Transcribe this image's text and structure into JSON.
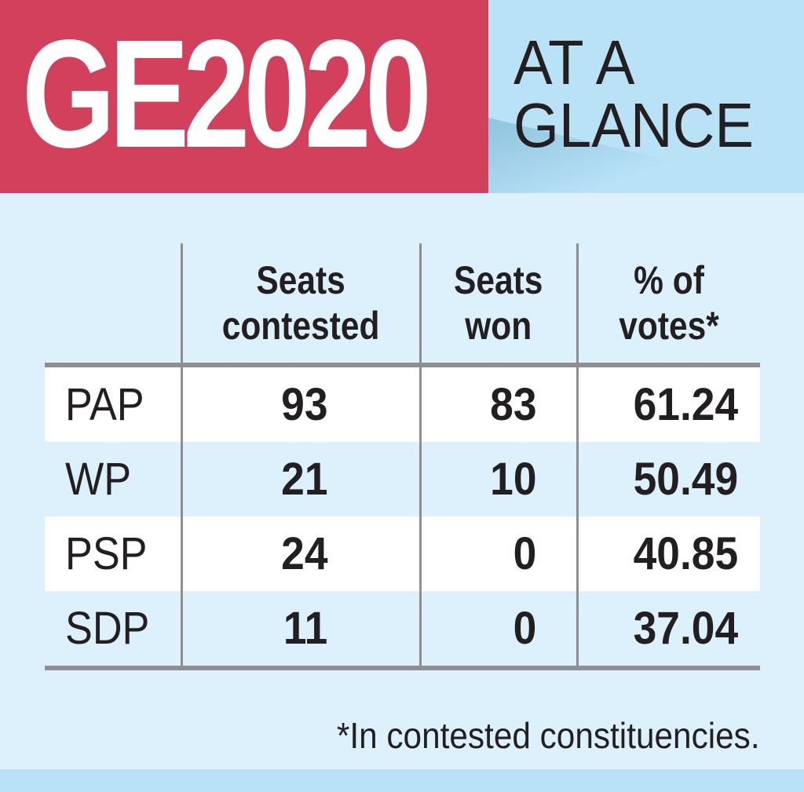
{
  "header": {
    "title": "GE2020",
    "subtitle_line1": "AT A",
    "subtitle_line2": "GLANCE"
  },
  "colors": {
    "header_red": "#d3405c",
    "header_blue": "#b9e2f7",
    "panel": "#ddf1fc",
    "row_stripe": "#ffffff",
    "rule": "#8e8f91"
  },
  "chart_data": {
    "type": "table",
    "columns": [
      "",
      "Seats contested",
      "Seats won",
      "% of votes*"
    ],
    "header_lines": [
      [
        "Seats",
        "contested"
      ],
      [
        "Seats",
        "won"
      ],
      [
        "% of",
        "votes*"
      ]
    ],
    "rows": [
      {
        "party": "PAP",
        "seats_contested": "93",
        "seats_won": "83",
        "pct_votes": "61.24"
      },
      {
        "party": "WP",
        "seats_contested": "21",
        "seats_won": "10",
        "pct_votes": "50.49"
      },
      {
        "party": "PSP",
        "seats_contested": "24",
        "seats_won": "0",
        "pct_votes": "40.85"
      },
      {
        "party": "SDP",
        "seats_contested": "11",
        "seats_won": "0",
        "pct_votes": "37.04"
      }
    ],
    "footnote": "*In contested constituencies."
  }
}
